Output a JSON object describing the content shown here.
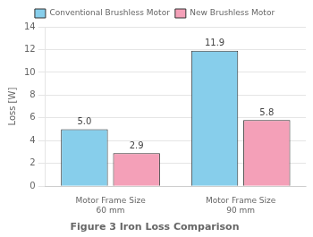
{
  "chart_data": {
    "type": "bar",
    "title": "Figure 3 Iron Loss Comparison",
    "ylabel": "Loss [W]",
    "categories": [
      "Motor Frame Size\n60 mm",
      "Motor Frame Size\n90 mm"
    ],
    "series": [
      {
        "name": "Conventional\nBrushless Motor",
        "color": "#87CEEB",
        "values": [
          5.0,
          11.9
        ],
        "value_labels": [
          "5.0",
          "11.9"
        ]
      },
      {
        "name": "New Brushless Motor",
        "color": "#F4A0B8",
        "values": [
          2.9,
          5.8
        ],
        "value_labels": [
          "2.9",
          "5.8"
        ]
      }
    ],
    "ylim": [
      0,
      14
    ],
    "yticks": [
      0,
      2,
      4,
      6,
      8,
      10,
      12,
      14
    ],
    "grid": true,
    "legend": "top",
    "data_labels": true
  }
}
